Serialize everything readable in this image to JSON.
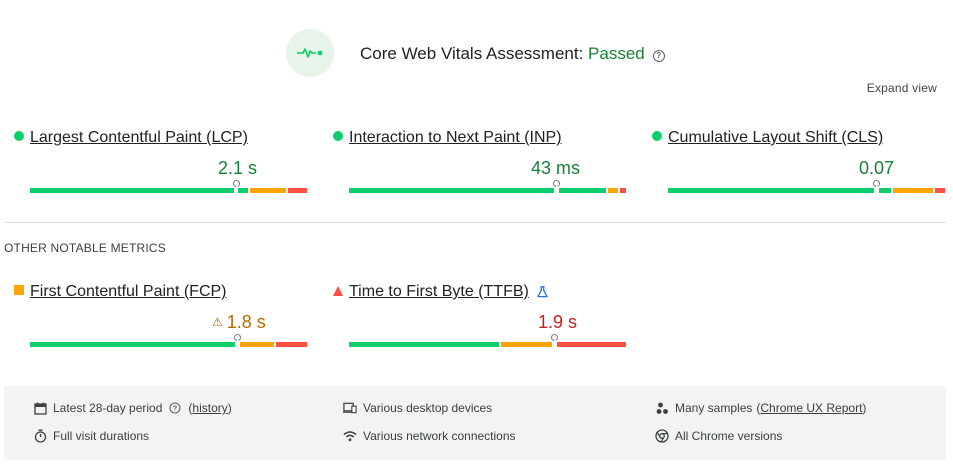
{
  "header": {
    "title_prefix": "Core Web Vitals Assessment: ",
    "status": "Passed",
    "help": "?",
    "expand_view": "Expand view"
  },
  "metrics": [
    {
      "name": "Largest Contentful Paint (LCP)",
      "value": "2.1 s",
      "rating": "good",
      "marker_fraction": 0.75
    },
    {
      "name": "Interaction to Next Paint (INP)",
      "value": "43 ms",
      "rating": "good",
      "marker_fraction": 0.75
    },
    {
      "name": "Cumulative Layout Shift (CLS)",
      "value": "0.07",
      "rating": "good",
      "marker_fraction": 0.75
    }
  ],
  "other_section": {
    "heading": "OTHER NOTABLE METRICS",
    "metrics": [
      {
        "name": "First Contentful Paint (FCP)",
        "value": "1.8 s",
        "rating": "needs-improvement",
        "warning": "⚠",
        "marker_fraction": 0.75
      },
      {
        "name": "Time to First Byte (TTFB)",
        "value": "1.9 s",
        "rating": "poor",
        "experimental_icon": "flask-icon",
        "marker_fraction": 0.75
      }
    ]
  },
  "footer": {
    "period_label": "Latest 28-day period",
    "period_link": "history",
    "visit_label": "Full visit durations",
    "devices_label": "Various desktop devices",
    "network_label": "Various network connections",
    "samples_label": "Many samples",
    "samples_link": "Chrome UX Report",
    "versions_label": "All Chrome versions"
  },
  "colors": {
    "good": "#0cce6b",
    "needs_improvement": "#ffa400",
    "poor": "#ff4e42",
    "passed_text": "#188038"
  }
}
